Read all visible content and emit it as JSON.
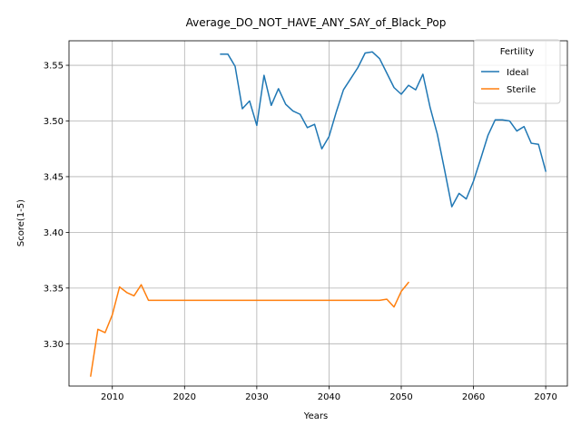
{
  "chart_data": {
    "type": "line",
    "title": "Average_DO_NOT_HAVE_ANY_SAY_of_Black_Pop",
    "xlabel": "Years",
    "ylabel": "Score(1-5)",
    "xlim": [
      2004,
      2073
    ],
    "ylim": [
      3.262,
      3.572
    ],
    "xticks": [
      2010,
      2020,
      2030,
      2040,
      2050,
      2060,
      2070
    ],
    "yticks": [
      3.3,
      3.35,
      3.4,
      3.45,
      3.5,
      3.55
    ],
    "grid": true,
    "legend": {
      "title": "Fertility",
      "placement": "top-right"
    },
    "series": [
      {
        "name": "Ideal",
        "color": "#1f77b4",
        "x": [
          2025,
          2026,
          2027,
          2028,
          2029,
          2030,
          2031,
          2032,
          2033,
          2034,
          2035,
          2036,
          2037,
          2038,
          2039,
          2040,
          2041,
          2042,
          2043,
          2044,
          2045,
          2046,
          2047,
          2048,
          2049,
          2050,
          2051,
          2052,
          2053,
          2054,
          2055,
          2056,
          2057,
          2058,
          2059,
          2060,
          2061,
          2062,
          2063,
          2064,
          2065,
          2066,
          2067,
          2068,
          2069,
          2070
        ],
        "y": [
          3.56,
          3.56,
          3.549,
          3.511,
          3.518,
          3.496,
          3.541,
          3.514,
          3.529,
          3.515,
          3.509,
          3.506,
          3.494,
          3.497,
          3.475,
          3.486,
          3.508,
          3.528,
          3.538,
          3.548,
          3.561,
          3.562,
          3.556,
          3.543,
          3.53,
          3.524,
          3.532,
          3.528,
          3.542,
          3.512,
          3.488,
          3.456,
          3.423,
          3.435,
          3.43,
          3.446,
          3.466,
          3.487,
          3.501,
          3.501,
          3.5,
          3.491,
          3.495,
          3.48,
          3.479,
          3.455
        ]
      },
      {
        "name": "Sterile",
        "color": "#ff7f0e",
        "x": [
          2007,
          2008,
          2009,
          2010,
          2011,
          2012,
          2013,
          2014,
          2015,
          2016,
          2017,
          2018,
          2019,
          2020,
          2021,
          2022,
          2023,
          2024,
          2025,
          2026,
          2027,
          2028,
          2029,
          2030,
          2031,
          2032,
          2033,
          2034,
          2035,
          2036,
          2037,
          2038,
          2039,
          2040,
          2041,
          2042,
          2043,
          2044,
          2045,
          2046,
          2047,
          2048,
          2049,
          2050,
          2051
        ],
        "y": [
          3.271,
          3.313,
          3.31,
          3.326,
          3.351,
          3.346,
          3.343,
          3.353,
          3.339,
          3.339,
          3.339,
          3.339,
          3.339,
          3.339,
          3.339,
          3.339,
          3.339,
          3.339,
          3.339,
          3.339,
          3.339,
          3.339,
          3.339,
          3.339,
          3.339,
          3.339,
          3.339,
          3.339,
          3.339,
          3.339,
          3.339,
          3.339,
          3.339,
          3.339,
          3.339,
          3.339,
          3.339,
          3.339,
          3.339,
          3.339,
          3.339,
          3.34,
          3.333,
          3.347,
          3.355
        ]
      }
    ]
  }
}
